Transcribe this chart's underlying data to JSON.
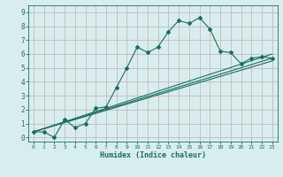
{
  "xlabel": "Humidex (Indice chaleur)",
  "bg_color": "#d8eeee",
  "grid_color": "#c8b8b8",
  "line_color": "#1a6e60",
  "xlim": [
    -0.5,
    23.5
  ],
  "ylim": [
    -0.3,
    9.5
  ],
  "xticks": [
    0,
    1,
    2,
    3,
    4,
    5,
    6,
    7,
    8,
    9,
    10,
    11,
    12,
    13,
    14,
    15,
    16,
    17,
    18,
    19,
    20,
    21,
    22,
    23
  ],
  "yticks": [
    0,
    1,
    2,
    3,
    4,
    5,
    6,
    7,
    8,
    9
  ],
  "series_main": {
    "x": [
      0,
      1,
      2,
      3,
      4,
      5,
      6,
      7,
      8,
      9,
      10,
      11,
      12,
      13,
      14,
      15,
      16,
      17,
      18,
      19,
      20,
      21,
      22,
      23
    ],
    "y": [
      0.4,
      0.4,
      0.0,
      1.3,
      0.7,
      1.0,
      2.1,
      2.2,
      3.6,
      5.0,
      6.5,
      6.1,
      6.5,
      7.6,
      8.4,
      8.2,
      8.6,
      7.8,
      6.2,
      6.1,
      5.3,
      5.7,
      5.8,
      5.7
    ]
  },
  "series_lines": [
    {
      "x": [
        0,
        23
      ],
      "y": [
        0.4,
        5.7
      ]
    },
    {
      "x": [
        0,
        23
      ],
      "y": [
        0.4,
        5.5
      ]
    },
    {
      "x": [
        0,
        23
      ],
      "y": [
        0.4,
        6.0
      ]
    }
  ]
}
